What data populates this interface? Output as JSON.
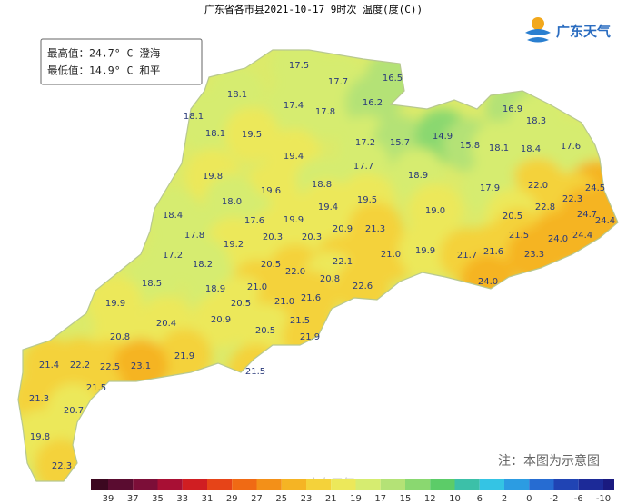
{
  "title": "广东省各市县2021-10-17 9时次 温度(度(C))",
  "info_box": [
    "最高值：24.7° C 澄海",
    "最低值：14.9° C 和平"
  ],
  "logo": "广东天气",
  "note": "注：本图为示意图",
  "watermark": "@广东天气",
  "stations": [
    "17.5",
    "17.7",
    "16.5",
    "18.1",
    "17.4",
    "17.8",
    "16.2",
    "16.9",
    "18.3",
    "18.1",
    "18.1",
    "19.5",
    "17.2",
    "15.7",
    "14.9",
    "15.8",
    "18.1",
    "18.4",
    "17.6",
    "19.4",
    "17.7",
    "19.8",
    "18.9",
    "18.8",
    "22.0",
    "24.5",
    "19.6",
    "18.0",
    "17.9",
    "19.5",
    "22.3",
    "19.4",
    "22.8",
    "24.7",
    "18.4",
    "17.6",
    "19.9",
    "19.0",
    "20.5",
    "24.4",
    "17.8",
    "20.9",
    "21.3",
    "21.5",
    "24.0",
    "24.4",
    "20.3",
    "20.3",
    "19.2",
    "17.2",
    "21.0",
    "19.9",
    "21.7",
    "21.6",
    "23.3",
    "18.2",
    "22.1",
    "20.5",
    "22.0",
    "24.0",
    "18.5",
    "20.8",
    "22.6",
    "18.9",
    "21.0",
    "21.6",
    "20.5",
    "21.0",
    "19.9",
    "20.9",
    "21.5",
    "20.4",
    "20.5",
    "21.9",
    "20.8",
    "21.9",
    "21.4",
    "22.2",
    "22.5",
    "23.1",
    "21.5",
    "21.5",
    "21.3",
    "20.7",
    "19.8",
    "22.3"
  ],
  "legend": {
    "ticks": [
      39,
      37,
      35,
      33,
      31,
      29,
      27,
      25,
      23,
      21,
      19,
      17,
      15,
      12,
      10,
      6,
      2,
      0,
      -2,
      -6,
      -10
    ],
    "colors": [
      "#3c0820",
      "#5a0c30",
      "#7c0e38",
      "#a80f34",
      "#d01e22",
      "#e64418",
      "#f06a14",
      "#f39018",
      "#f5b424",
      "#f4d23a",
      "#ece85a",
      "#d6ec70",
      "#b4e276",
      "#8ad870",
      "#5ccc68",
      "#3cc0a8",
      "#34c4e4",
      "#2c9ce2",
      "#266cd2",
      "#2044b4",
      "#1c2a98",
      "#1a1a80"
    ]
  }
}
